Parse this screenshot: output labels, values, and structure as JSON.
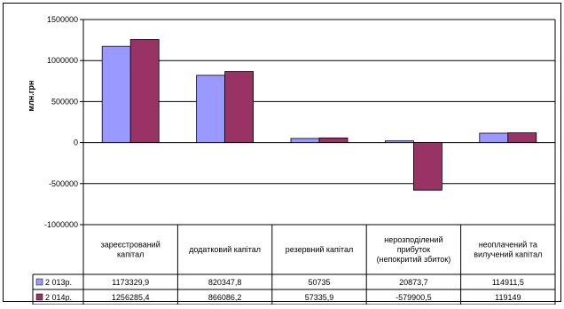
{
  "colors": {
    "series1": "#9999ff",
    "series2": "#993366",
    "border": "#000000",
    "plot_bg": "#ffffff"
  },
  "chart_data": {
    "type": "bar",
    "ylabel": "млн.грн",
    "ylim": [
      -1000000,
      1500000
    ],
    "yticks": [
      "1500000",
      "1000000",
      "500000",
      "0",
      "-500000",
      "-1000000"
    ],
    "ytick_values": [
      1500000,
      1000000,
      500000,
      0,
      -500000,
      -1000000
    ],
    "grid": true,
    "categories": [
      [
        "зареєстрований",
        "капітал"
      ],
      [
        "додатковий капітал"
      ],
      [
        "резервний капітал"
      ],
      [
        "нерозподілений",
        "прибуток",
        "(непокритий збиток)"
      ],
      [
        "неоплачений та",
        "вилучений капітал"
      ]
    ],
    "series": [
      {
        "name": "2 013р.",
        "values": [
          1173329.9,
          820347.8,
          50735,
          20873.7,
          114911.5
        ],
        "labels": [
          "1173329,9",
          "820347,8",
          "50735",
          "20873,7",
          "114911,5"
        ]
      },
      {
        "name": "2 014р.",
        "values": [
          1256285.4,
          866086.2,
          57335.9,
          -579900.5,
          119149
        ],
        "labels": [
          "1256285,4",
          "866086,2",
          "57335,9",
          "-579900,5",
          "119149"
        ]
      }
    ]
  }
}
